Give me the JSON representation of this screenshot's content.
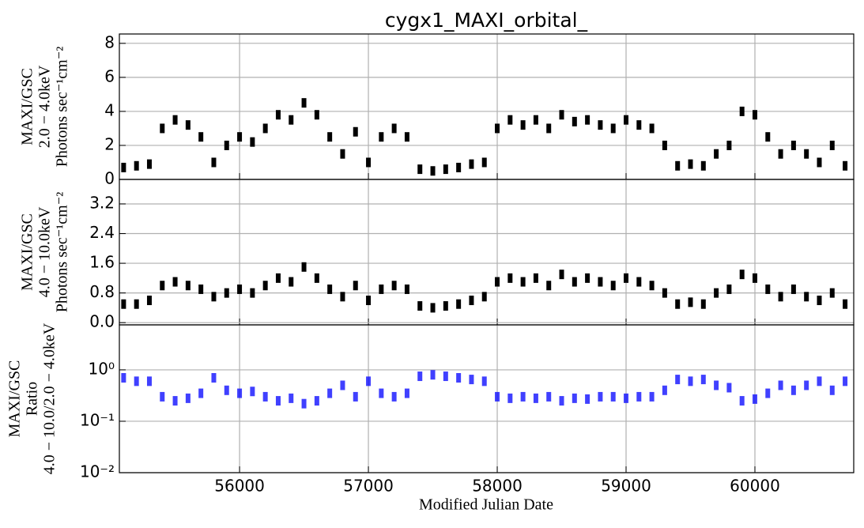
{
  "chart_data": [
    {
      "type": "scatter",
      "title": "cygx1_MAXI_orbital_",
      "ylabel": [
        "MAXI/GSC",
        "2.0 − 4.0keV",
        "Photons sec⁻¹cm⁻²"
      ],
      "x": [
        55100,
        55200,
        55300,
        55400,
        55500,
        55600,
        55700,
        55800,
        55900,
        56000,
        56100,
        56200,
        56300,
        56400,
        56500,
        56600,
        56700,
        56800,
        56900,
        57000,
        57100,
        57200,
        57300,
        57400,
        57500,
        57600,
        57700,
        57800,
        57900,
        58000,
        58100,
        58200,
        58300,
        58400,
        58500,
        58600,
        58700,
        58800,
        58900,
        59000,
        59100,
        59200,
        59300,
        59400,
        59500,
        59600,
        59700,
        59800,
        59900,
        60000,
        60100,
        60200,
        60300,
        60400,
        60500,
        60600,
        60700
      ],
      "series": [
        {
          "color": "#000000",
          "values": [
            0.7,
            0.8,
            0.9,
            3.0,
            3.5,
            3.2,
            2.5,
            1.0,
            2.0,
            2.5,
            2.2,
            3.0,
            3.8,
            3.5,
            4.5,
            3.8,
            2.5,
            1.5,
            2.8,
            1.0,
            2.5,
            3.0,
            2.5,
            0.6,
            0.5,
            0.6,
            0.7,
            0.9,
            1.0,
            3.0,
            3.5,
            3.2,
            3.5,
            3.0,
            3.8,
            3.4,
            3.5,
            3.2,
            3.0,
            3.5,
            3.2,
            3.0,
            2.0,
            0.8,
            0.9,
            0.8,
            1.5,
            2.0,
            4.0,
            3.8,
            2.5,
            1.5,
            2.0,
            1.5,
            1.0,
            2.0,
            0.8
          ]
        }
      ],
      "xlim": [
        55067,
        60767
      ],
      "xticks": [
        56000,
        57000,
        58000,
        59000,
        60000
      ],
      "ylim": [
        0,
        8.55
      ],
      "yticks": [
        0,
        2,
        4,
        6,
        8
      ],
      "grid": true
    },
    {
      "type": "scatter",
      "ylabel": [
        "MAXI/GSC",
        "4.0 − 10.0keV",
        "Photons sec⁻¹cm⁻²"
      ],
      "x": [
        55100,
        55200,
        55300,
        55400,
        55500,
        55600,
        55700,
        55800,
        55900,
        56000,
        56100,
        56200,
        56300,
        56400,
        56500,
        56600,
        56700,
        56800,
        56900,
        57000,
        57100,
        57200,
        57300,
        57400,
        57500,
        57600,
        57700,
        57800,
        57900,
        58000,
        58100,
        58200,
        58300,
        58400,
        58500,
        58600,
        58700,
        58800,
        58900,
        59000,
        59100,
        59200,
        59300,
        59400,
        59500,
        59600,
        59700,
        59800,
        59900,
        60000,
        60100,
        60200,
        60300,
        60400,
        60500,
        60600,
        60700
      ],
      "series": [
        {
          "color": "#000000",
          "values": [
            0.5,
            0.5,
            0.6,
            1.0,
            1.1,
            1.0,
            0.9,
            0.7,
            0.8,
            0.9,
            0.8,
            1.0,
            1.2,
            1.1,
            1.5,
            1.2,
            0.9,
            0.7,
            1.0,
            0.6,
            0.9,
            1.0,
            0.9,
            0.45,
            0.4,
            0.45,
            0.5,
            0.6,
            0.7,
            1.1,
            1.2,
            1.1,
            1.2,
            1.0,
            1.3,
            1.1,
            1.2,
            1.1,
            1.0,
            1.2,
            1.1,
            1.0,
            0.8,
            0.5,
            0.55,
            0.5,
            0.8,
            0.9,
            1.3,
            1.2,
            0.9,
            0.7,
            0.9,
            0.7,
            0.6,
            0.8,
            0.5
          ]
        }
      ],
      "xlim": [
        55067,
        60767
      ],
      "xticks": [
        56000,
        57000,
        58000,
        59000,
        60000
      ],
      "ylim": [
        -0.06,
        3.86
      ],
      "yticks": [
        {
          "value": 0,
          "label": "0.0"
        },
        0.8,
        1.6,
        2.4,
        3.2
      ],
      "grid": true
    },
    {
      "type": "scatter",
      "xlabel": "Modified Julian Date",
      "ylabel": [
        "MAXI/GSC",
        "Ratio",
        "4.0 − 10.0/2.0 − 4.0keV"
      ],
      "x": [
        55100,
        55200,
        55300,
        55400,
        55500,
        55600,
        55700,
        55800,
        55900,
        56000,
        56100,
        56200,
        56300,
        56400,
        56500,
        56600,
        56700,
        56800,
        56900,
        57000,
        57100,
        57200,
        57300,
        57400,
        57500,
        57600,
        57700,
        57800,
        57900,
        58000,
        58100,
        58200,
        58300,
        58400,
        58500,
        58600,
        58700,
        58800,
        58900,
        59000,
        59100,
        59200,
        59300,
        59400,
        59500,
        59600,
        59700,
        59800,
        59900,
        60000,
        60100,
        60200,
        60300,
        60400,
        60500,
        60600,
        60700
      ],
      "series": [
        {
          "color": "#0000ff",
          "values": [
            0.7,
            0.6,
            0.6,
            0.3,
            0.25,
            0.28,
            0.35,
            0.7,
            0.4,
            0.35,
            0.38,
            0.3,
            0.25,
            0.28,
            0.22,
            0.25,
            0.35,
            0.5,
            0.3,
            0.6,
            0.35,
            0.3,
            0.35,
            0.75,
            0.8,
            0.75,
            0.7,
            0.65,
            0.6,
            0.3,
            0.28,
            0.3,
            0.28,
            0.3,
            0.25,
            0.28,
            0.27,
            0.3,
            0.3,
            0.28,
            0.3,
            0.3,
            0.4,
            0.65,
            0.6,
            0.65,
            0.5,
            0.45,
            0.25,
            0.27,
            0.35,
            0.5,
            0.4,
            0.5,
            0.6,
            0.4,
            0.6
          ]
        }
      ],
      "xlim": [
        55067,
        60767
      ],
      "xticks": [
        56000,
        57000,
        58000,
        59000,
        60000
      ],
      "ylim": [
        0.01,
        7.5
      ],
      "log": true,
      "yticks": [
        {
          "value": 0.01,
          "label": "10⁻²"
        },
        {
          "value": 0.1,
          "label": "10⁻¹"
        },
        {
          "value": 1,
          "label": "10⁰"
        }
      ],
      "grid": true
    }
  ]
}
